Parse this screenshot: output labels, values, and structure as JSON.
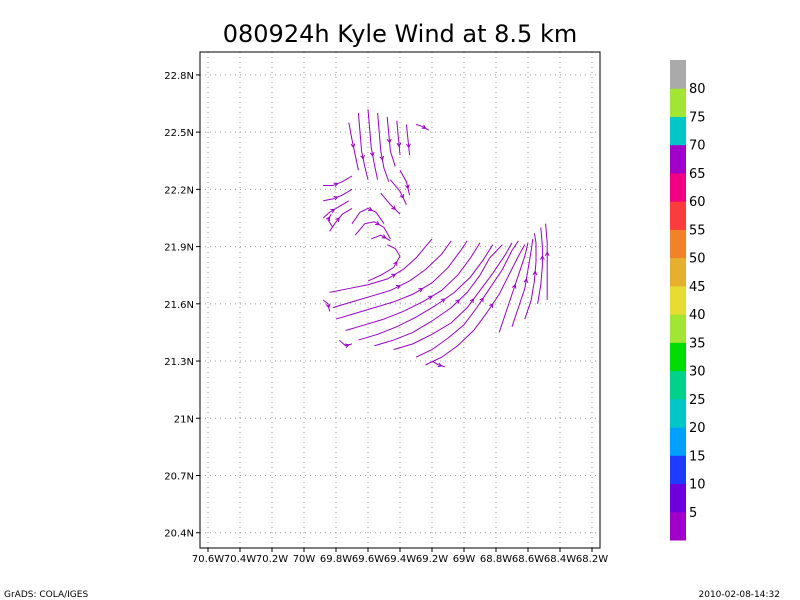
{
  "chart_data": {
    "type": "streamline",
    "title": "080924h Kyle Wind at 8.5 km",
    "xlim": [
      -70.65,
      -68.15
    ],
    "ylim": [
      20.32,
      22.92
    ],
    "x_ticks": [
      {
        "value": -70.6,
        "label": "70.6W"
      },
      {
        "value": -70.4,
        "label": "70.4W"
      },
      {
        "value": -70.2,
        "label": "70.2W"
      },
      {
        "value": -70.0,
        "label": "70W"
      },
      {
        "value": -69.8,
        "label": "69.8W"
      },
      {
        "value": -69.6,
        "label": "69.6W"
      },
      {
        "value": -69.4,
        "label": "69.4W"
      },
      {
        "value": -69.2,
        "label": "69.2W"
      },
      {
        "value": -69.0,
        "label": "69W"
      },
      {
        "value": -68.8,
        "label": "68.8W"
      },
      {
        "value": -68.6,
        "label": "68.6W"
      },
      {
        "value": -68.4,
        "label": "68.4W"
      },
      {
        "value": -68.2,
        "label": "68.2W"
      }
    ],
    "y_ticks": [
      {
        "value": 20.4,
        "label": "20.4N"
      },
      {
        "value": 20.7,
        "label": "20.7N"
      },
      {
        "value": 21.0,
        "label": "21N"
      },
      {
        "value": 21.3,
        "label": "21.3N"
      },
      {
        "value": 21.6,
        "label": "21.6N"
      },
      {
        "value": 21.9,
        "label": "21.9N"
      },
      {
        "value": 22.2,
        "label": "22.2N"
      },
      {
        "value": 22.5,
        "label": "22.5N"
      },
      {
        "value": 22.8,
        "label": "22.8N"
      }
    ],
    "grid": true,
    "colorbar": {
      "placement": "right",
      "labels": [
        "5",
        "10",
        "15",
        "20",
        "25",
        "30",
        "35",
        "40",
        "45",
        "50",
        "55",
        "60",
        "65",
        "70",
        "75",
        "80"
      ],
      "colors": [
        "#a000c8",
        "#6e00dc",
        "#1e3cff",
        "#00a0ff",
        "#00c8c8",
        "#00d28c",
        "#00dc00",
        "#a0e632",
        "#e6dc32",
        "#e6af2d",
        "#f08228",
        "#fa3c3c",
        "#f00082",
        "#a000c8",
        "#00c8c8",
        "#a0e632",
        "#aaaaaa"
      ]
    },
    "stream_color": "#9b00c8",
    "streamlines": [
      [
        [
          -69.72,
          22.55
        ],
        [
          -69.7,
          22.46
        ],
        [
          -69.68,
          22.38
        ],
        [
          -69.66,
          22.3
        ]
      ],
      [
        [
          -69.66,
          22.6
        ],
        [
          -69.65,
          22.5
        ],
        [
          -69.64,
          22.4
        ],
        [
          -69.62,
          22.32
        ],
        [
          -69.6,
          22.25
        ]
      ],
      [
        [
          -69.6,
          22.62
        ],
        [
          -69.59,
          22.52
        ],
        [
          -69.58,
          22.42
        ],
        [
          -69.56,
          22.33
        ],
        [
          -69.54,
          22.25
        ]
      ],
      [
        [
          -69.54,
          22.6
        ],
        [
          -69.53,
          22.5
        ],
        [
          -69.52,
          22.4
        ],
        [
          -69.5,
          22.31
        ],
        [
          -69.47,
          22.24
        ]
      ],
      [
        [
          -69.48,
          22.58
        ],
        [
          -69.47,
          22.49
        ],
        [
          -69.46,
          22.4
        ],
        [
          -69.43,
          22.32
        ]
      ],
      [
        [
          -69.42,
          22.56
        ],
        [
          -69.41,
          22.47
        ],
        [
          -69.4,
          22.38
        ]
      ],
      [
        [
          -69.36,
          22.54
        ],
        [
          -69.35,
          22.46
        ],
        [
          -69.34,
          22.38
        ]
      ],
      [
        [
          -69.3,
          22.54
        ],
        [
          -69.26,
          22.53
        ],
        [
          -69.22,
          22.51
        ]
      ],
      [
        [
          -69.88,
          22.22
        ],
        [
          -69.82,
          22.22
        ],
        [
          -69.76,
          22.24
        ],
        [
          -69.7,
          22.27
        ]
      ],
      [
        [
          -69.88,
          22.14
        ],
        [
          -69.82,
          22.15
        ],
        [
          -69.76,
          22.17
        ],
        [
          -69.7,
          22.2
        ]
      ],
      [
        [
          -69.88,
          22.05
        ],
        [
          -69.84,
          22.08
        ],
        [
          -69.78,
          22.11
        ],
        [
          -69.72,
          22.14
        ]
      ],
      [
        [
          -69.84,
          21.98
        ],
        [
          -69.8,
          22.03
        ],
        [
          -69.76,
          22.07
        ],
        [
          -69.7,
          22.1
        ]
      ],
      [
        [
          -69.82,
          22.0
        ],
        [
          -69.85,
          22.04
        ],
        [
          -69.83,
          22.07
        ]
      ],
      [
        [
          -69.7,
          22.02
        ],
        [
          -69.65,
          22.08
        ],
        [
          -69.6,
          22.1
        ],
        [
          -69.55,
          22.08
        ],
        [
          -69.5,
          22.02
        ]
      ],
      [
        [
          -69.68,
          21.96
        ],
        [
          -69.62,
          22.02
        ],
        [
          -69.56,
          22.03
        ],
        [
          -69.5,
          22.0
        ],
        [
          -69.46,
          21.94
        ]
      ],
      [
        [
          -69.58,
          21.94
        ],
        [
          -69.52,
          21.96
        ],
        [
          -69.46,
          21.93
        ]
      ],
      [
        [
          -69.52,
          22.18
        ],
        [
          -69.46,
          22.12
        ],
        [
          -69.4,
          22.07
        ]
      ],
      [
        [
          -69.46,
          22.25
        ],
        [
          -69.4,
          22.19
        ],
        [
          -69.36,
          22.12
        ]
      ],
      [
        [
          -69.4,
          22.3
        ],
        [
          -69.36,
          22.24
        ],
        [
          -69.34,
          22.17
        ]
      ],
      [
        [
          -69.6,
          21.72
        ],
        [
          -69.52,
          21.75
        ],
        [
          -69.44,
          21.79
        ],
        [
          -69.4,
          21.85
        ],
        [
          -69.43,
          21.89
        ],
        [
          -69.48,
          21.91
        ]
      ],
      [
        [
          -69.84,
          21.66
        ],
        [
          -69.72,
          21.68
        ],
        [
          -69.6,
          21.7
        ],
        [
          -69.48,
          21.73
        ],
        [
          -69.38,
          21.78
        ],
        [
          -69.3,
          21.84
        ],
        [
          -69.24,
          21.9
        ],
        [
          -69.2,
          21.94
        ]
      ],
      [
        [
          -69.82,
          21.58
        ],
        [
          -69.7,
          21.61
        ],
        [
          -69.58,
          21.64
        ],
        [
          -69.46,
          21.67
        ],
        [
          -69.34,
          21.72
        ],
        [
          -69.24,
          21.78
        ],
        [
          -69.14,
          21.86
        ],
        [
          -69.08,
          21.93
        ]
      ],
      [
        [
          -69.8,
          21.52
        ],
        [
          -69.68,
          21.55
        ],
        [
          -69.56,
          21.58
        ],
        [
          -69.44,
          21.61
        ],
        [
          -69.32,
          21.65
        ],
        [
          -69.2,
          21.71
        ],
        [
          -69.1,
          21.79
        ],
        [
          -69.02,
          21.88
        ],
        [
          -68.98,
          21.93
        ]
      ],
      [
        [
          -69.74,
          21.46
        ],
        [
          -69.62,
          21.49
        ],
        [
          -69.5,
          21.52
        ],
        [
          -69.38,
          21.56
        ],
        [
          -69.26,
          21.61
        ],
        [
          -69.14,
          21.67
        ],
        [
          -69.04,
          21.75
        ],
        [
          -68.96,
          21.84
        ],
        [
          -68.9,
          21.92
        ]
      ],
      [
        [
          -69.66,
          21.41
        ],
        [
          -69.54,
          21.44
        ],
        [
          -69.42,
          21.48
        ],
        [
          -69.3,
          21.53
        ],
        [
          -69.18,
          21.59
        ],
        [
          -69.06,
          21.66
        ],
        [
          -68.96,
          21.74
        ],
        [
          -68.88,
          21.83
        ],
        [
          -68.82,
          21.91
        ]
      ],
      [
        [
          -69.56,
          21.38
        ],
        [
          -69.44,
          21.41
        ],
        [
          -69.32,
          21.45
        ],
        [
          -69.2,
          21.51
        ],
        [
          -69.08,
          21.58
        ],
        [
          -68.98,
          21.66
        ],
        [
          -68.9,
          21.75
        ],
        [
          -68.84,
          21.84
        ],
        [
          -68.76,
          21.91
        ]
      ],
      [
        [
          -69.44,
          21.36
        ],
        [
          -69.32,
          21.39
        ],
        [
          -69.2,
          21.44
        ],
        [
          -69.08,
          21.5
        ],
        [
          -68.98,
          21.58
        ],
        [
          -68.9,
          21.67
        ],
        [
          -68.82,
          21.76
        ],
        [
          -68.74,
          21.86
        ],
        [
          -68.7,
          21.92
        ]
      ],
      [
        [
          -69.3,
          21.32
        ],
        [
          -69.2,
          21.36
        ],
        [
          -69.1,
          21.42
        ],
        [
          -69.0,
          21.49
        ],
        [
          -68.92,
          21.58
        ],
        [
          -68.84,
          21.68
        ],
        [
          -68.76,
          21.78
        ],
        [
          -68.7,
          21.88
        ],
        [
          -68.66,
          21.93
        ]
      ],
      [
        [
          -69.24,
          21.28
        ],
        [
          -69.14,
          21.32
        ],
        [
          -69.04,
          21.38
        ],
        [
          -68.94,
          21.46
        ],
        [
          -68.86,
          21.55
        ],
        [
          -68.78,
          21.65
        ],
        [
          -68.72,
          21.75
        ],
        [
          -68.66,
          21.85
        ],
        [
          -68.62,
          21.91
        ]
      ],
      [
        [
          -68.78,
          21.45
        ],
        [
          -68.74,
          21.55
        ],
        [
          -68.7,
          21.65
        ],
        [
          -68.66,
          21.75
        ],
        [
          -68.62,
          21.85
        ],
        [
          -68.6,
          21.92
        ]
      ],
      [
        [
          -68.7,
          21.48
        ],
        [
          -68.66,
          21.58
        ],
        [
          -68.62,
          21.68
        ],
        [
          -68.6,
          21.78
        ],
        [
          -68.58,
          21.88
        ],
        [
          -68.57,
          21.94
        ]
      ],
      [
        [
          -68.62,
          21.52
        ],
        [
          -68.58,
          21.62
        ],
        [
          -68.56,
          21.72
        ],
        [
          -68.55,
          21.82
        ],
        [
          -68.55,
          21.92
        ],
        [
          -68.56,
          21.97
        ]
      ],
      [
        [
          -68.54,
          21.6
        ],
        [
          -68.52,
          21.7
        ],
        [
          -68.51,
          21.8
        ],
        [
          -68.51,
          21.9
        ],
        [
          -68.52,
          22.0
        ]
      ],
      [
        [
          -68.48,
          21.62
        ],
        [
          -68.48,
          21.72
        ],
        [
          -68.48,
          21.82
        ],
        [
          -68.48,
          21.92
        ],
        [
          -68.49,
          22.02
        ]
      ],
      [
        [
          -69.88,
          21.62
        ],
        [
          -69.85,
          21.6
        ],
        [
          -69.84,
          21.56
        ]
      ],
      [
        [
          -69.78,
          21.41
        ],
        [
          -69.74,
          21.38
        ],
        [
          -69.7,
          21.39
        ]
      ],
      [
        [
          -69.2,
          21.3
        ],
        [
          -69.16,
          21.28
        ],
        [
          -69.12,
          21.27
        ]
      ]
    ]
  },
  "footer": {
    "left": "GrADS: COLA/IGES",
    "right": "2010-02-08-14:32"
  }
}
